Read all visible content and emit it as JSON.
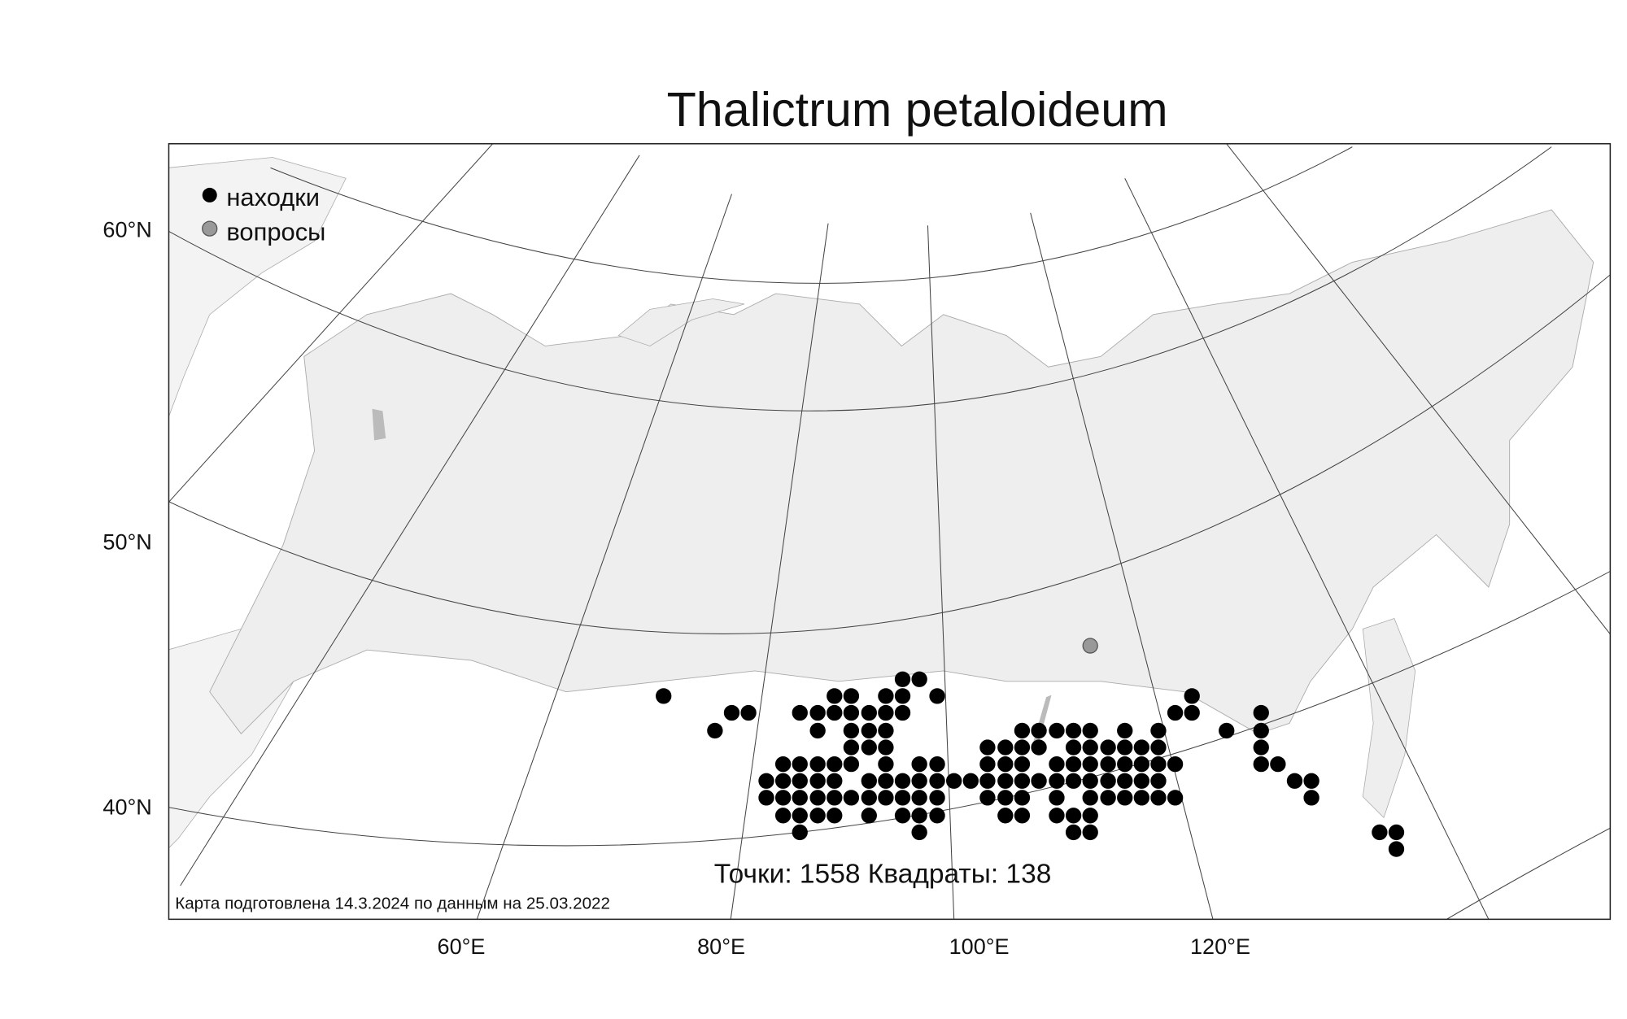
{
  "title": "Thalictrum petaloideum",
  "legend": {
    "items": [
      "находки",
      "вопросы"
    ]
  },
  "axes": {
    "lat_labels": [
      "60°N",
      "50°N",
      "40°N"
    ],
    "lon_labels": [
      "60°E",
      "80°E",
      "100°E",
      "120°E"
    ]
  },
  "stats": "Точки: 1558 Квадраты: 138",
  "footer": "Карта подготовлена 14.3.2024 по данным на 25.03.2022"
}
